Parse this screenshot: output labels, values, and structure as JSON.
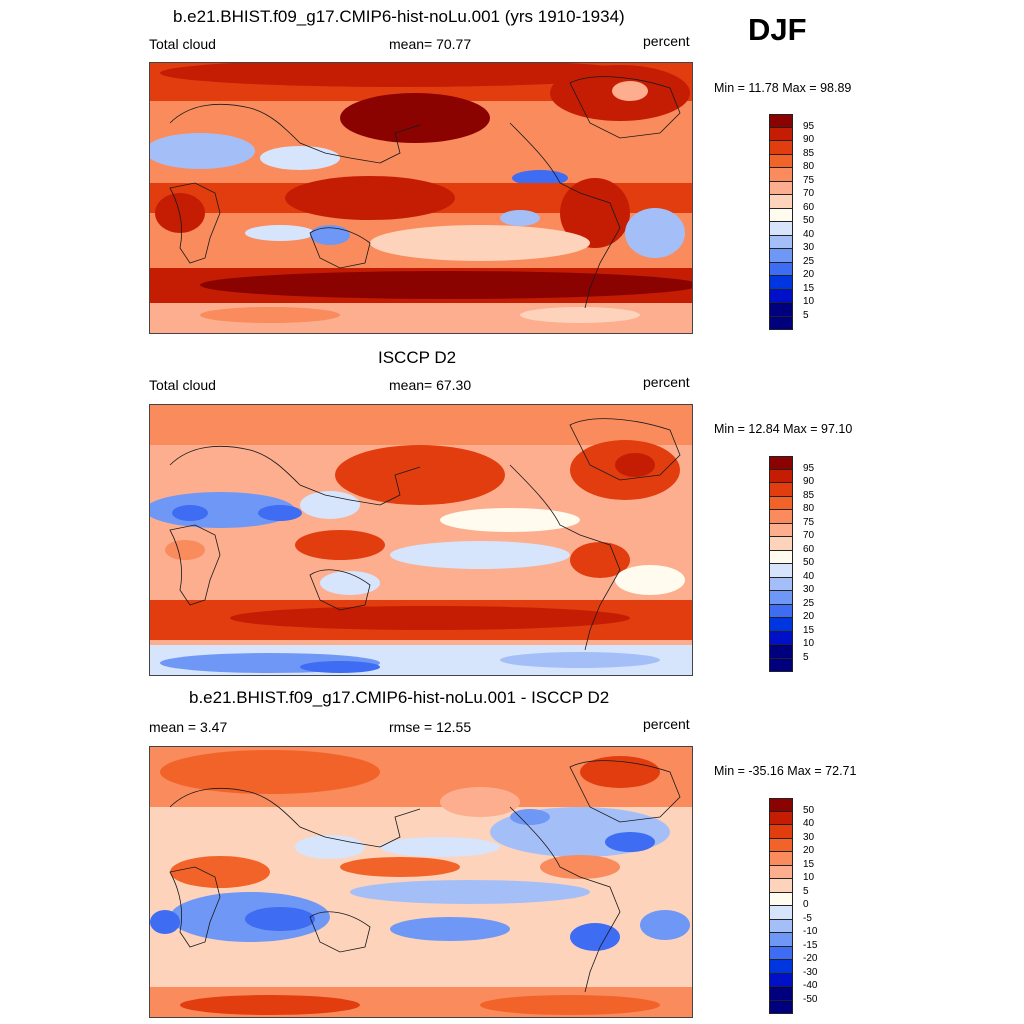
{
  "season": "DJF",
  "palettes": {
    "abs": [
      "#00007f",
      "#0010c8",
      "#0036e0",
      "#3e6cf2",
      "#6f97f5",
      "#a4bff8",
      "#d6e4fc",
      "#fffbee",
      "#fdd3bc",
      "#fcae8f",
      "#f98b5d",
      "#f26329",
      "#e23d0f",
      "#c41d04",
      "#8a0300"
    ],
    "diff": [
      "#00007f",
      "#0010c8",
      "#0036e0",
      "#3e6cf2",
      "#6f97f5",
      "#a4bff8",
      "#d6e4fc",
      "#fffbee",
      "#fdd3bc",
      "#fcae8f",
      "#f98b5d",
      "#f26329",
      "#e23d0f",
      "#c41d04",
      "#8a0300"
    ]
  },
  "panels": [
    {
      "title": "b.e21.BHIST.f09_g17.CMIP6-hist-noLu.001 (yrs 1910-1934)",
      "left_label": "Total cloud",
      "center_label": "mean=  70.77",
      "right_label": "percent",
      "minmax": "Min =  11.78 Max =  98.89",
      "palette": "abs",
      "levels": [
        "95",
        "90",
        "85",
        "80",
        "75",
        "70",
        "60",
        "50",
        "40",
        "30",
        "25",
        "20",
        "15",
        "10",
        "5"
      ]
    },
    {
      "title": "ISCCP D2",
      "left_label": "Total cloud",
      "center_label": "mean=  67.30",
      "right_label": "percent",
      "minmax": "Min =  12.84 Max =  97.10",
      "palette": "abs",
      "levels": [
        "95",
        "90",
        "85",
        "80",
        "75",
        "70",
        "60",
        "50",
        "40",
        "30",
        "25",
        "20",
        "15",
        "10",
        "5"
      ]
    },
    {
      "title": "b.e21.BHIST.f09_g17.CMIP6-hist-noLu.001 - ISCCP D2",
      "left_label": "mean =   3.47",
      "center_label": "rmse =  12.55",
      "right_label": "percent",
      "minmax": "Min = -35.16 Max =  72.71",
      "palette": "diff",
      "levels": [
        "50",
        "40",
        "30",
        "20",
        "15",
        "10",
        "5",
        "0",
        "-5",
        "-10",
        "-15",
        "-20",
        "-30",
        "-40",
        "-50"
      ]
    }
  ]
}
